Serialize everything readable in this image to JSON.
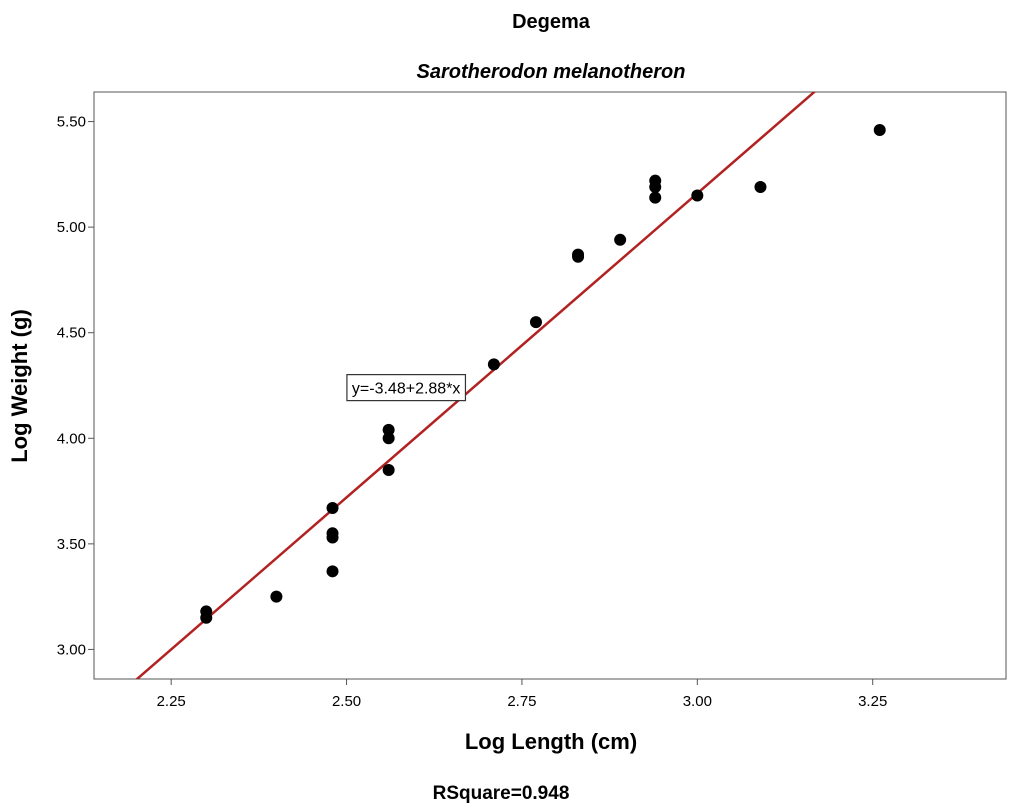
{
  "chart_data": {
    "type": "scatter",
    "title": "Degema",
    "subtitle": "Sarotherodon melanotheron",
    "xlabel": "Log Length (cm)",
    "ylabel": "Log Weight (g)",
    "xlim": [
      2.14,
      3.44
    ],
    "ylim": [
      2.86,
      5.64
    ],
    "x_ticks": [
      2.25,
      2.5,
      2.75,
      3.0,
      3.25
    ],
    "x_tick_labels": [
      "2.25",
      "2.50",
      "2.75",
      "3.00",
      "3.25"
    ],
    "y_ticks": [
      3.0,
      3.5,
      4.0,
      4.5,
      5.0,
      5.5
    ],
    "y_tick_labels": [
      "3.00",
      "3.50",
      "4.00",
      "4.50",
      "5.00",
      "5.50"
    ],
    "points": [
      {
        "x": 2.3,
        "y": 3.18
      },
      {
        "x": 2.3,
        "y": 3.15
      },
      {
        "x": 2.4,
        "y": 3.25
      },
      {
        "x": 2.48,
        "y": 3.67
      },
      {
        "x": 2.48,
        "y": 3.55
      },
      {
        "x": 2.48,
        "y": 3.53
      },
      {
        "x": 2.48,
        "y": 3.37
      },
      {
        "x": 2.56,
        "y": 4.04
      },
      {
        "x": 2.56,
        "y": 4.0
      },
      {
        "x": 2.56,
        "y": 3.85
      },
      {
        "x": 2.71,
        "y": 4.35
      },
      {
        "x": 2.77,
        "y": 4.55
      },
      {
        "x": 2.83,
        "y": 4.86
      },
      {
        "x": 2.83,
        "y": 4.87
      },
      {
        "x": 2.89,
        "y": 4.94
      },
      {
        "x": 2.94,
        "y": 5.22
      },
      {
        "x": 2.94,
        "y": 5.19
      },
      {
        "x": 2.94,
        "y": 5.14
      },
      {
        "x": 3.0,
        "y": 5.15
      },
      {
        "x": 3.09,
        "y": 5.19
      },
      {
        "x": 3.26,
        "y": 5.46
      }
    ],
    "fit_line": {
      "intercept": -3.48,
      "slope": 2.88,
      "color": "#b22222"
    },
    "equation_label": "y=-3.48+2.88*x",
    "equation_anchor": {
      "x": 2.585,
      "y": 4.24
    },
    "rsquare_label": "RSquare=0.948",
    "point_color": "#000000",
    "grid": false,
    "legend": "none"
  }
}
